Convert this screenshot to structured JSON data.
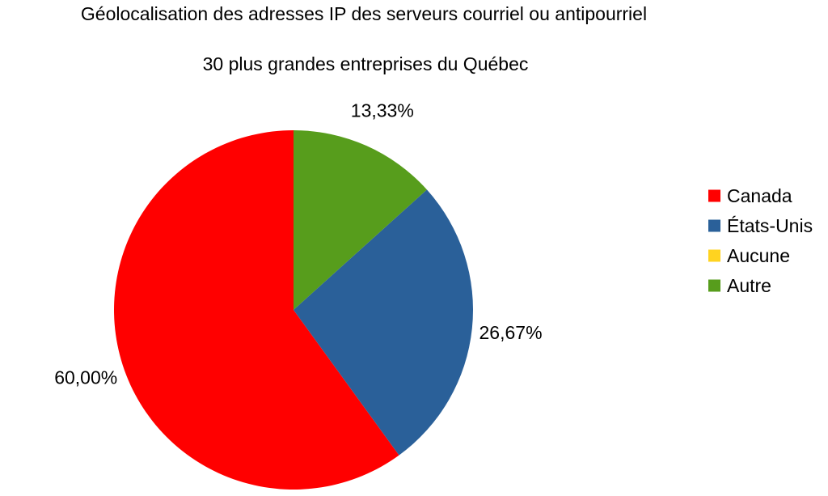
{
  "chart_data": {
    "type": "pie",
    "title": "Géolocalisation des adresses IP des serveurs courriel ou antipourriel",
    "subtitle": "30 plus grandes entreprises du Québec",
    "categories": [
      "Canada",
      "États-Unis",
      "Aucune",
      "Autre"
    ],
    "values": [
      60.0,
      26.67,
      0,
      13.33
    ],
    "data_labels": [
      "60,00%",
      "26,67%",
      "",
      "13,33%"
    ],
    "colors": [
      "#ff0000",
      "#2a6099",
      "#ffd320",
      "#579d1c"
    ],
    "legend_position": "right",
    "slice_order": "counter-clockwise from top, Canada first"
  }
}
